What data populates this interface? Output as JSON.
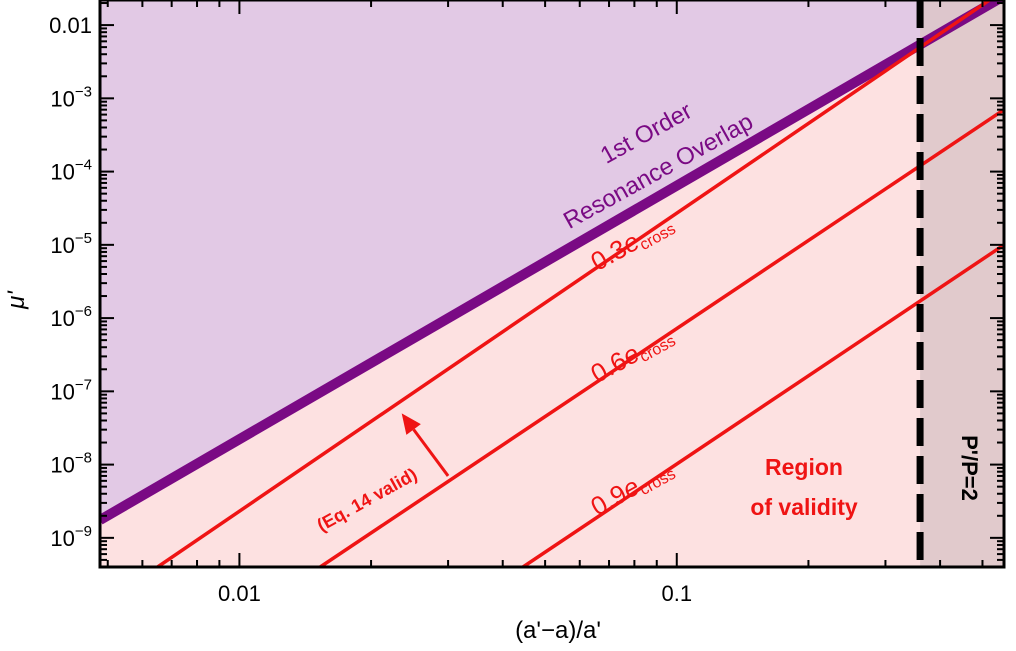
{
  "chart_data": {
    "type": "line",
    "xlabel": "(a'−a)/a'",
    "ylabel": "μ'",
    "x_scale": "log",
    "y_scale": "log",
    "xlim": [
      0.0048,
      0.56
    ],
    "ylim": [
      4e-10,
      0.022
    ],
    "x_ticks": [
      {
        "value": 0.01,
        "label": "0.01"
      },
      {
        "value": 0.1,
        "label": "0.1"
      }
    ],
    "y_ticks": [
      {
        "value": 1e-09,
        "base": "10",
        "exp": "−9"
      },
      {
        "value": 1e-08,
        "base": "10",
        "exp": "−8"
      },
      {
        "value": 1e-07,
        "base": "10",
        "exp": "−7"
      },
      {
        "value": 1e-06,
        "base": "10",
        "exp": "−6"
      },
      {
        "value": 1e-05,
        "base": "10",
        "exp": "−5"
      },
      {
        "value": 0.0001,
        "base": "10",
        "exp": "−4"
      },
      {
        "value": 0.001,
        "base": "10",
        "exp": "−3"
      },
      {
        "value": 0.01,
        "plain": "0.01"
      }
    ],
    "colors": {
      "overlap_fill": "#e2c9e5",
      "validity_fill": "#fde1e1",
      "beyond_fill": "#dcc5c8",
      "overlap_line": "#7a0a84",
      "red": "#ef1414",
      "frame": "#000000"
    },
    "series": [
      {
        "name": "1st Order Resonance Overlap",
        "points": [
          [
            0.0048,
            1.75e-09
          ],
          [
            0.56,
            0.025
          ]
        ]
      },
      {
        "name": "0.3e_cross",
        "points": [
          [
            0.0065,
            4e-10
          ],
          [
            0.56,
            0.03
          ]
        ]
      },
      {
        "name": "0.6e_cross",
        "points": [
          [
            0.0153,
            4e-10
          ],
          [
            0.56,
            0.0007
          ]
        ]
      },
      {
        "name": "0.9e_cross",
        "points": [
          [
            0.0445,
            4e-10
          ],
          [
            0.56,
            1e-05
          ]
        ]
      }
    ],
    "vline": {
      "x": 0.36,
      "label": "P'/P=2"
    },
    "arrow": {
      "from": [
        0.03,
        7e-09
      ],
      "to": [
        0.0235,
        5e-08
      ]
    },
    "annotations": {
      "overlap_line1": "1st Order",
      "overlap_line2": "Resonance Overlap",
      "eq14": "(Eq. 14 valid)",
      "region_line1": "Region",
      "region_line2": "of validity",
      "label_03_num": "0.3",
      "label_06_num": "0.6",
      "label_09_num": "0.9",
      "e_symbol": "e",
      "e_subscript": "cross"
    }
  }
}
